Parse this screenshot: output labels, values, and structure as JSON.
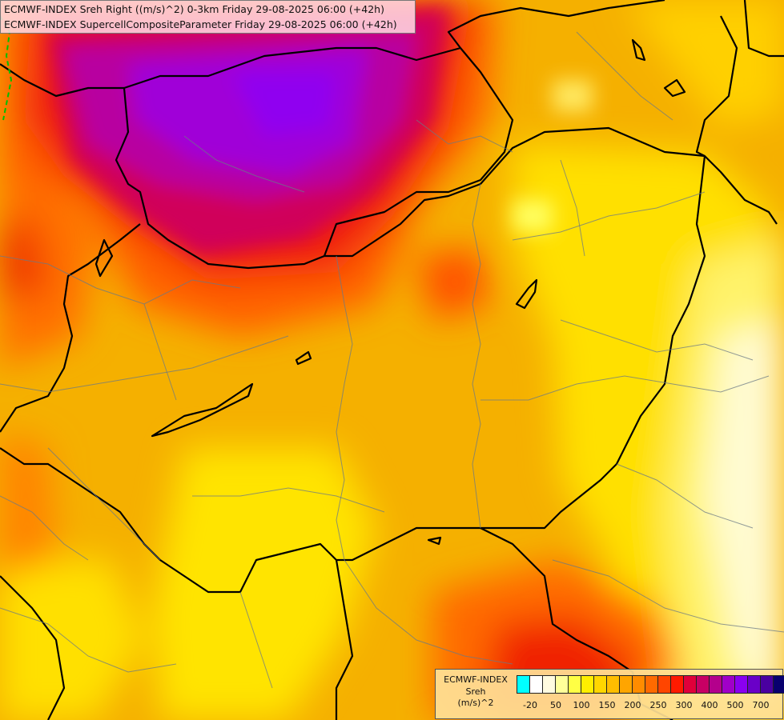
{
  "titles": [
    "ECMWF-INDEX Sreh Right ((m/s)^2) 0-3km Friday 29-08-2025 06:00 (+42h)",
    "ECMWF-INDEX SupercellCompositeParameter Friday 29-08-2025 06:00 (+42h)"
  ],
  "legend": {
    "title_lines": [
      "ECMWF-INDEX",
      "Sreh",
      "(m/s)^2"
    ],
    "colors": [
      "#00ffff",
      "#ffffff",
      "#fffbe0",
      "#ffff99",
      "#ffff44",
      "#ffee00",
      "#ffd600",
      "#ffbd00",
      "#ffa500",
      "#ff8c00",
      "#ff6a00",
      "#ff4500",
      "#ff1a00",
      "#e0003a",
      "#c80064",
      "#b4008c",
      "#a000c8",
      "#8a00f0",
      "#6a00c8",
      "#4a00a0",
      "#08006e"
    ],
    "ticks": [
      {
        "label": "-20",
        "slot": 1
      },
      {
        "label": "50",
        "slot": 3
      },
      {
        "label": "100",
        "slot": 5
      },
      {
        "label": "150",
        "slot": 7
      },
      {
        "label": "200",
        "slot": 9
      },
      {
        "label": "250",
        "slot": 11
      },
      {
        "label": "300",
        "slot": 13
      },
      {
        "label": "400",
        "slot": 15
      },
      {
        "label": "500",
        "slot": 17
      },
      {
        "label": "700",
        "slot": 19
      }
    ]
  },
  "map": {
    "region": "Hungary and surroundings",
    "field_colors": {
      "base": "#f5b000",
      "high": "#c0007a",
      "peak": "#a000d8",
      "low": "#fff9c8"
    }
  }
}
